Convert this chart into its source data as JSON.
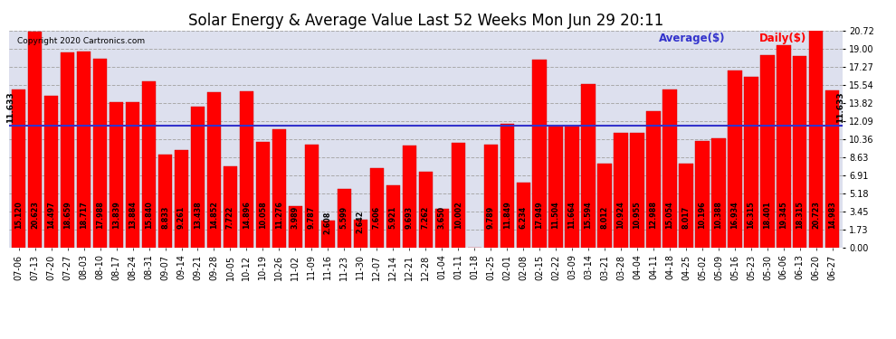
{
  "title": "Solar Energy & Average Value Last 52 Weeks Mon Jun 29 20:11",
  "copyright": "Copyright 2020 Cartronics.com",
  "legend_average": "Average($)",
  "legend_daily": "Daily($)",
  "average_value": 11.633,
  "bar_color": "#ff0000",
  "average_line_color": "#3333cc",
  "background_color": "#ffffff",
  "plot_bg_color": "#dde0ee",
  "ylabel_right_values": [
    0.0,
    1.73,
    3.45,
    5.18,
    6.91,
    8.63,
    10.36,
    12.09,
    13.82,
    15.54,
    17.27,
    19.0,
    20.72
  ],
  "categories": [
    "07-06",
    "07-13",
    "07-20",
    "07-27",
    "08-03",
    "08-10",
    "08-17",
    "08-24",
    "08-31",
    "09-07",
    "09-14",
    "09-21",
    "09-28",
    "10-05",
    "10-12",
    "10-19",
    "10-26",
    "11-02",
    "11-09",
    "11-16",
    "11-23",
    "11-30",
    "12-07",
    "12-14",
    "12-21",
    "12-28",
    "01-04",
    "01-11",
    "01-18",
    "01-25",
    "02-01",
    "02-08",
    "02-15",
    "02-22",
    "03-09",
    "03-14",
    "03-21",
    "03-28",
    "04-04",
    "04-11",
    "04-18",
    "04-25",
    "05-02",
    "05-09",
    "05-16",
    "05-23",
    "05-30",
    "06-06",
    "06-13",
    "06-20",
    "06-27"
  ],
  "values": [
    15.12,
    20.623,
    14.497,
    18.659,
    18.717,
    17.988,
    13.839,
    13.884,
    15.84,
    8.833,
    9.261,
    13.438,
    14.852,
    7.722,
    14.896,
    10.058,
    11.276,
    3.989,
    9.787,
    2.608,
    5.599,
    2.642,
    7.606,
    5.921,
    9.693,
    7.262,
    3.65,
    10.002,
    0.008,
    9.789,
    11.849,
    6.234,
    17.949,
    11.504,
    11.664,
    15.594,
    8.012,
    10.924,
    10.955,
    12.988,
    15.054,
    8.017,
    10.196,
    10.388,
    16.934,
    16.315,
    18.401,
    19.345,
    18.315,
    20.723,
    14.983
  ],
  "ylim": [
    0,
    20.72
  ],
  "grid_color": "#aaaaaa",
  "title_fontsize": 12,
  "tick_fontsize": 7,
  "label_fontsize": 5.8,
  "bar_width": 0.85
}
